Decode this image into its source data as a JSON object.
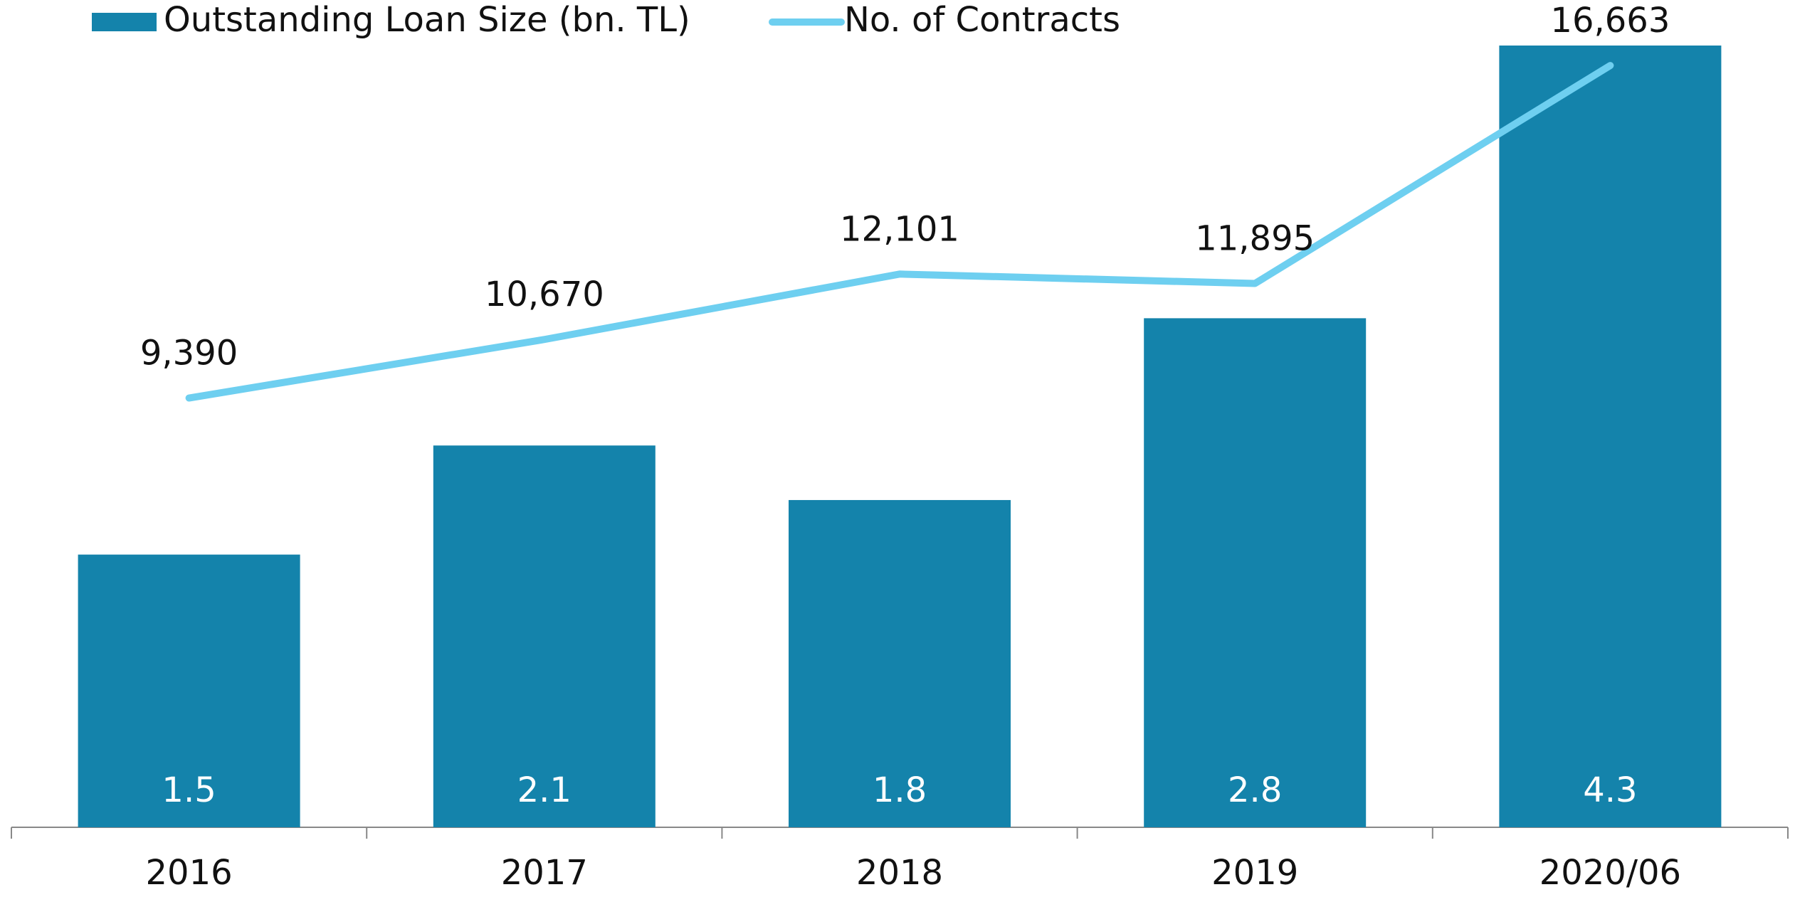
{
  "chart_data": {
    "type": "bar",
    "categories": [
      "2016",
      "2017",
      "2018",
      "2019",
      "2020/06"
    ],
    "series": [
      {
        "name": "Outstanding Loan Size (bn. TL)",
        "type": "bar",
        "color": "#1483ab",
        "values": [
          1.5,
          2.1,
          1.8,
          2.8,
          4.3
        ]
      },
      {
        "name": "No. of Contracts",
        "type": "line",
        "axis": "y2",
        "color": "#6ecff0",
        "values": [
          9390,
          10670,
          12101,
          11895,
          16663
        ],
        "value_labels": [
          "9,390",
          "10,670",
          "12,101",
          "11,895",
          "16,663"
        ]
      }
    ],
    "ylim": [
      0,
      4.3
    ],
    "y2lim": [
      0,
      17100
    ]
  }
}
